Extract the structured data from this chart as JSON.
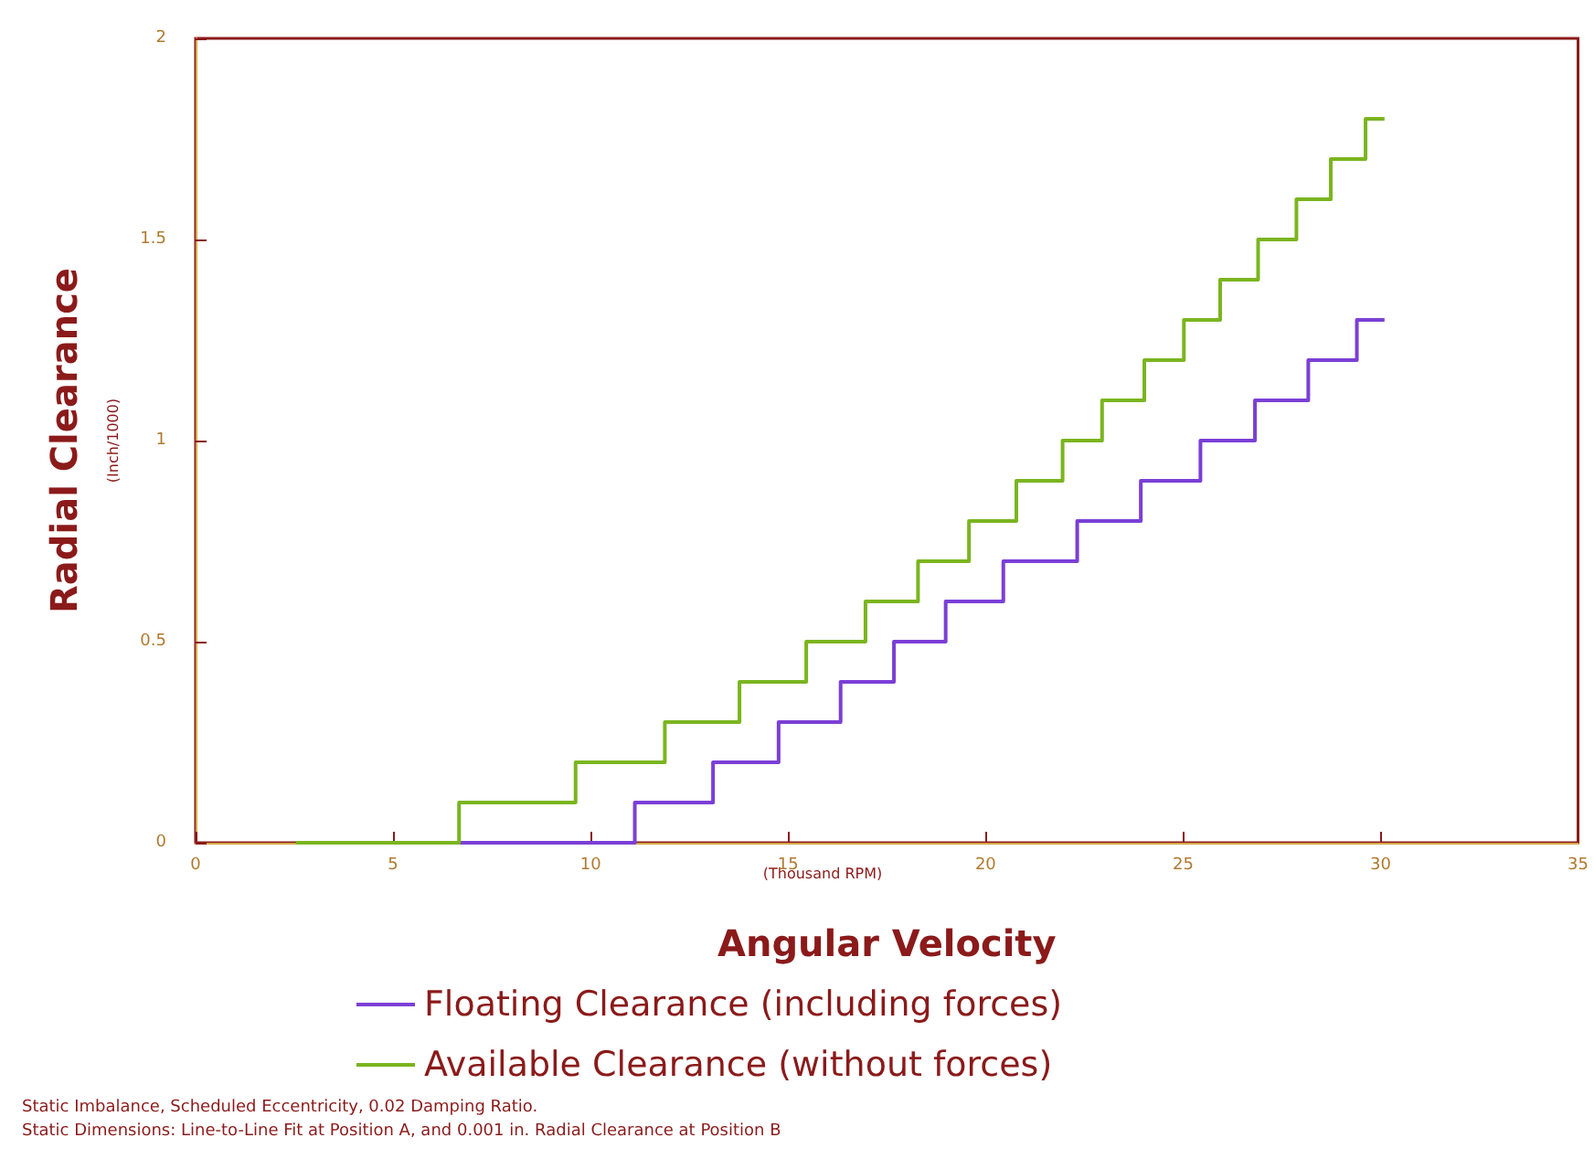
{
  "chart_data": {
    "type": "step",
    "xlabel": "Angular Velocity",
    "ylabel": "Radial Clearance",
    "annotations": [
      "(Thousand RPM)",
      "(Inch/1000)",
      "Static Imbalance, Scheduled Eccentricity, 0.02 Damping Ratio.",
      "Static Dimensions: Line-to-Line Fit at Position A, and 0.001 in. Radial Clearance at Position B"
    ],
    "series": [
      {
        "name": "Floating Clearance (including forces)",
        "color": "#7b3fd6",
        "x": [
          6.67,
          11.12,
          13.1,
          14.76,
          16.33,
          17.68,
          18.99,
          20.45,
          22.32,
          23.93,
          25.44,
          26.82,
          28.17,
          29.4,
          30.1
        ],
        "values": [
          0,
          0.1,
          0.2,
          0.3,
          0.4,
          0.5,
          0.6,
          0.7,
          0.8,
          0.9,
          1.0,
          1.1,
          1.2,
          1.3,
          1.3
        ]
      },
      {
        "name": "Available Clearance (without forces)",
        "color": "#7ab51f",
        "x": [
          2.54,
          6.67,
          9.62,
          11.88,
          13.77,
          15.46,
          16.96,
          18.29,
          19.58,
          20.78,
          21.95,
          22.95,
          24.02,
          25.02,
          25.94,
          26.9,
          27.87,
          28.74,
          29.62,
          30.1
        ],
        "values": [
          0,
          0.1,
          0.2,
          0.3,
          0.4,
          0.5,
          0.6,
          0.7,
          0.8,
          0.9,
          1.0,
          1.1,
          1.2,
          1.3,
          1.4,
          1.5,
          1.6,
          1.7,
          1.8,
          1.8
        ]
      }
    ],
    "xlim": [
      0,
      35
    ],
    "xticks": [
      0,
      5,
      10,
      15,
      20,
      25,
      30,
      35
    ],
    "ylim": [
      0,
      2
    ],
    "yticks": [
      0,
      0.5,
      1,
      1.5,
      2
    ],
    "grid": false,
    "legend": "bottom",
    "marker": "none",
    "line_style": "solid"
  }
}
